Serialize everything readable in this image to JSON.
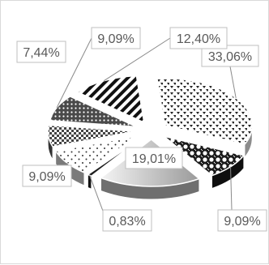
{
  "chart_data": {
    "type": "pie",
    "style": "3d-exploded",
    "slices": [
      {
        "value": 33.06,
        "label": "33,06%",
        "pattern": "dots"
      },
      {
        "value": 9.09,
        "label": "9,09%",
        "pattern": "bubbles"
      },
      {
        "value": 19.01,
        "label": "19,01%",
        "pattern": "gradient"
      },
      {
        "value": 0.83,
        "label": "0,83%",
        "pattern": "solid-dark"
      },
      {
        "value": 9.09,
        "label": "9,09%",
        "pattern": "sparse-dots"
      },
      {
        "value": 7.44,
        "label": "7,44%",
        "pattern": "checker"
      },
      {
        "value": 9.09,
        "label": "9,09%",
        "pattern": "dense-dots"
      },
      {
        "value": 12.4,
        "label": "12,40%",
        "pattern": "diagonal-stripes"
      }
    ],
    "legend": "none"
  }
}
